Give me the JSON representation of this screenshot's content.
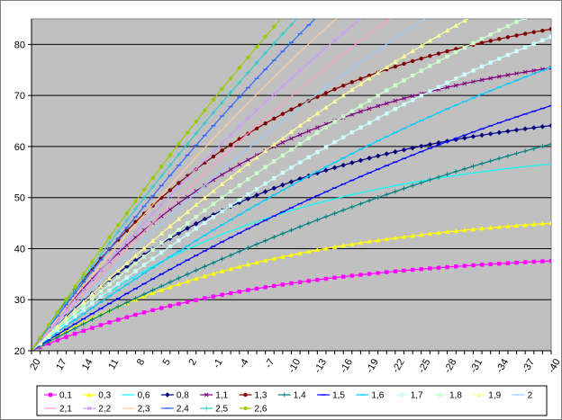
{
  "chart_data": {
    "type": "line",
    "title": "",
    "xlabel": "",
    "ylabel": "",
    "x": [
      20,
      19,
      18,
      17,
      16,
      15,
      14,
      13,
      12,
      11,
      10,
      9,
      8,
      7,
      6,
      5,
      4,
      3,
      2,
      1,
      0,
      -1,
      -2,
      -3,
      -4,
      -5,
      -6,
      -7,
      -8,
      -9,
      -10,
      -11,
      -12,
      -13,
      -14,
      -15,
      -16,
      -17,
      -18,
      -19,
      -20,
      -21,
      -22,
      -23,
      -24,
      -25,
      -26,
      -27,
      -28,
      -29,
      -30,
      -31,
      -32,
      -33,
      -34,
      -35,
      -36,
      -37,
      -38,
      -39,
      -40
    ],
    "x_tick_labels": [
      "20",
      "17",
      "14",
      "11",
      "8",
      "5",
      "2",
      "-1",
      "-4",
      "-7",
      "-10",
      "-13",
      "-16",
      "-19",
      "-22",
      "-25",
      "-28",
      "-31",
      "-34",
      "-37",
      "-40"
    ],
    "ylim": [
      20,
      85
    ],
    "y_ticks": [
      "20",
      "30",
      "40",
      "50",
      "60",
      "70",
      "80"
    ],
    "grid": "horizontal",
    "legend_position": "bottom",
    "plot_background": "#c0c0c0",
    "series": [
      {
        "name": "0,1",
        "color": "#ff00ff",
        "marker": "square",
        "ymax": 37.6,
        "k": 0.45
      },
      {
        "name": "0,3",
        "color": "#ffff00",
        "marker": "triangle",
        "ymax": 45.0,
        "k": 0.58
      },
      {
        "name": "0,6",
        "color": "#00ffff",
        "marker": "none",
        "ymax": 56.6,
        "k": 0.72
      },
      {
        "name": "0,8",
        "color": "#000080",
        "marker": "diamond",
        "ymax": 64.1,
        "k": 0.85
      },
      {
        "name": "1,1",
        "color": "#800080",
        "marker": "x",
        "ymax": 75.4,
        "k": 1.0
      },
      {
        "name": "1,3",
        "color": "#800000",
        "marker": "circle",
        "ymax": 83.0,
        "k": 1.15
      },
      {
        "name": "1,4",
        "color": "#008080",
        "marker": "plus",
        "ymax": 85,
        "k": 1.35
      },
      {
        "name": "1,5",
        "color": "#0000ff",
        "marker": "dash",
        "ymax": 85,
        "k": 1.6
      },
      {
        "name": "1,6",
        "color": "#00ccff",
        "marker": "dash",
        "ymax": 85,
        "k": 1.85
      },
      {
        "name": "1,7",
        "color": "#ccffff",
        "marker": "square",
        "ymax": 85,
        "k": 2.05
      },
      {
        "name": "1,8",
        "color": "#ccffcc",
        "marker": "square",
        "ymax": 85,
        "k": 2.25
      },
      {
        "name": "1,9",
        "color": "#ffff99",
        "marker": "triangle",
        "ymax": 85,
        "k": 2.45
      },
      {
        "name": "2",
        "color": "#99ccff",
        "marker": "none",
        "ymax": 85,
        "k": 2.65
      },
      {
        "name": "2,1",
        "color": "#ff99cc",
        "marker": "none",
        "ymax": 85,
        "k": 2.85
      },
      {
        "name": "2,2",
        "color": "#cc99ff",
        "marker": "x",
        "ymax": 85,
        "k": 3.05
      },
      {
        "name": "2,3",
        "color": "#ffcc99",
        "marker": "none",
        "ymax": 85,
        "k": 3.25
      },
      {
        "name": "2,4",
        "color": "#3366ff",
        "marker": "dash",
        "ymax": 85,
        "k": 3.45
      },
      {
        "name": "2,5",
        "color": "#33cccc",
        "marker": "plus",
        "ymax": 85,
        "k": 3.65
      },
      {
        "name": "2,6",
        "color": "#99cc00",
        "marker": "circle",
        "ymax": 85,
        "k": 3.85
      }
    ]
  }
}
